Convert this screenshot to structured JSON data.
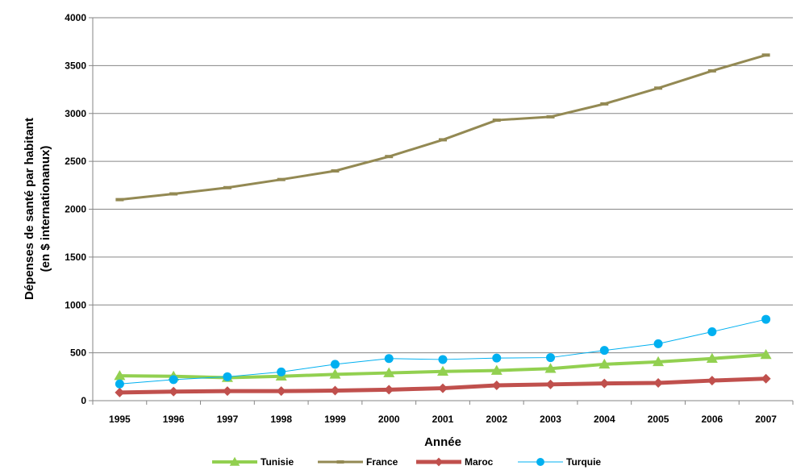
{
  "chart_data": {
    "type": "line",
    "xlabel": "Année",
    "ylabel": [
      "Dépenses de santé par habitant",
      "(en $ internationanux)"
    ],
    "x": [
      "1995",
      "1996",
      "1997",
      "1998",
      "1999",
      "2000",
      "2001",
      "2002",
      "2003",
      "2004",
      "2005",
      "2006",
      "2007"
    ],
    "ylim": [
      0,
      4000
    ],
    "yticks": [
      "0",
      "500",
      "1000",
      "1500",
      "2000",
      "2500",
      "3000",
      "3500",
      "4000"
    ],
    "grid": true,
    "legend_position": "bottom",
    "series": [
      {
        "name": "Tunisie",
        "color": "#92d050",
        "marker": "triangle",
        "values": [
          260,
          255,
          240,
          255,
          275,
          290,
          305,
          315,
          335,
          380,
          405,
          440,
          480
        ]
      },
      {
        "name": "France",
        "color": "#938953",
        "marker": "dash",
        "values": [
          2100,
          2160,
          2225,
          2310,
          2400,
          2550,
          2725,
          2930,
          2965,
          3100,
          3265,
          3445,
          3610
        ]
      },
      {
        "name": "Maroc",
        "color": "#c0504d",
        "marker": "diamond",
        "values": [
          85,
          95,
          100,
          100,
          105,
          115,
          130,
          160,
          170,
          180,
          185,
          210,
          230
        ]
      },
      {
        "name": "Turquie",
        "color": "#00b0f0",
        "marker": "circle",
        "values": [
          175,
          220,
          250,
          300,
          380,
          440,
          430,
          445,
          450,
          525,
          595,
          720,
          850
        ]
      }
    ]
  }
}
